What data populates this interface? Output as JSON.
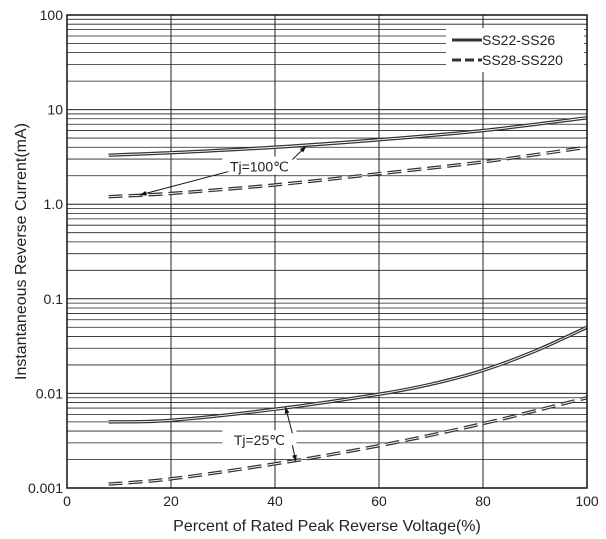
{
  "chart_data": {
    "type": "line",
    "xlabel": "Percent of Rated Peak Reverse Voltage(%)",
    "ylabel": "Instantaneous Reverse Current(mA)",
    "xlim": [
      0,
      100
    ],
    "ylim": [
      0.001,
      100
    ],
    "yscale": "log",
    "grid": true,
    "legend_position": "top-right",
    "x_ticks": [
      "0",
      "20",
      "40",
      "60",
      "80",
      "100"
    ],
    "y_ticks": [
      "0.001",
      "0.01",
      "0.1",
      "1.0",
      "10",
      "100"
    ],
    "x_tick_values": [
      0,
      20,
      40,
      60,
      80,
      100
    ],
    "y_tick_values": [
      0.001,
      0.01,
      0.1,
      1,
      10,
      100
    ],
    "legend": [
      {
        "label": "SS22-SS26",
        "style": "solid"
      },
      {
        "label": "SS28-SS220",
        "style": "dashed"
      }
    ],
    "series": [
      {
        "name": "SS22-SS26",
        "group": "Tj=100℃",
        "style": "solid",
        "x": [
          8,
          20,
          40,
          60,
          80,
          100
        ],
        "y": [
          3.3,
          3.5,
          4.0,
          4.8,
          6.0,
          8.2
        ]
      },
      {
        "name": "SS28-SS220",
        "group": "Tj=100℃",
        "style": "dashed",
        "x": [
          8,
          20,
          40,
          60,
          80,
          100
        ],
        "y": [
          1.2,
          1.3,
          1.6,
          2.1,
          2.8,
          4.0
        ]
      },
      {
        "name": "SS22-SS26",
        "group": "Tj=25℃",
        "style": "solid",
        "x": [
          8,
          20,
          40,
          60,
          70,
          80,
          90,
          100
        ],
        "y": [
          0.005,
          0.0052,
          0.0068,
          0.0098,
          0.0125,
          0.0175,
          0.028,
          0.05
        ]
      },
      {
        "name": "SS28-SS220",
        "group": "Tj=25℃",
        "style": "dashed",
        "x": [
          8,
          20,
          40,
          60,
          80,
          100
        ],
        "y": [
          0.0011,
          0.00125,
          0.0018,
          0.0028,
          0.0048,
          0.009
        ]
      }
    ],
    "annotations": [
      {
        "text": "Tj=100℃",
        "at_x": 37,
        "at_y": 2.5,
        "arrows_to": [
          [
            46,
            4.1
          ],
          [
            14,
            1.25
          ]
        ]
      },
      {
        "text": "Tj=25℃",
        "at_x": 37,
        "at_y": 0.0032,
        "arrows_to": [
          [
            42,
            0.0072
          ],
          [
            44,
            0.0019
          ]
        ]
      }
    ],
    "colors": {
      "line": "#333333",
      "grid": "#222222",
      "background": "#ffffff"
    }
  }
}
